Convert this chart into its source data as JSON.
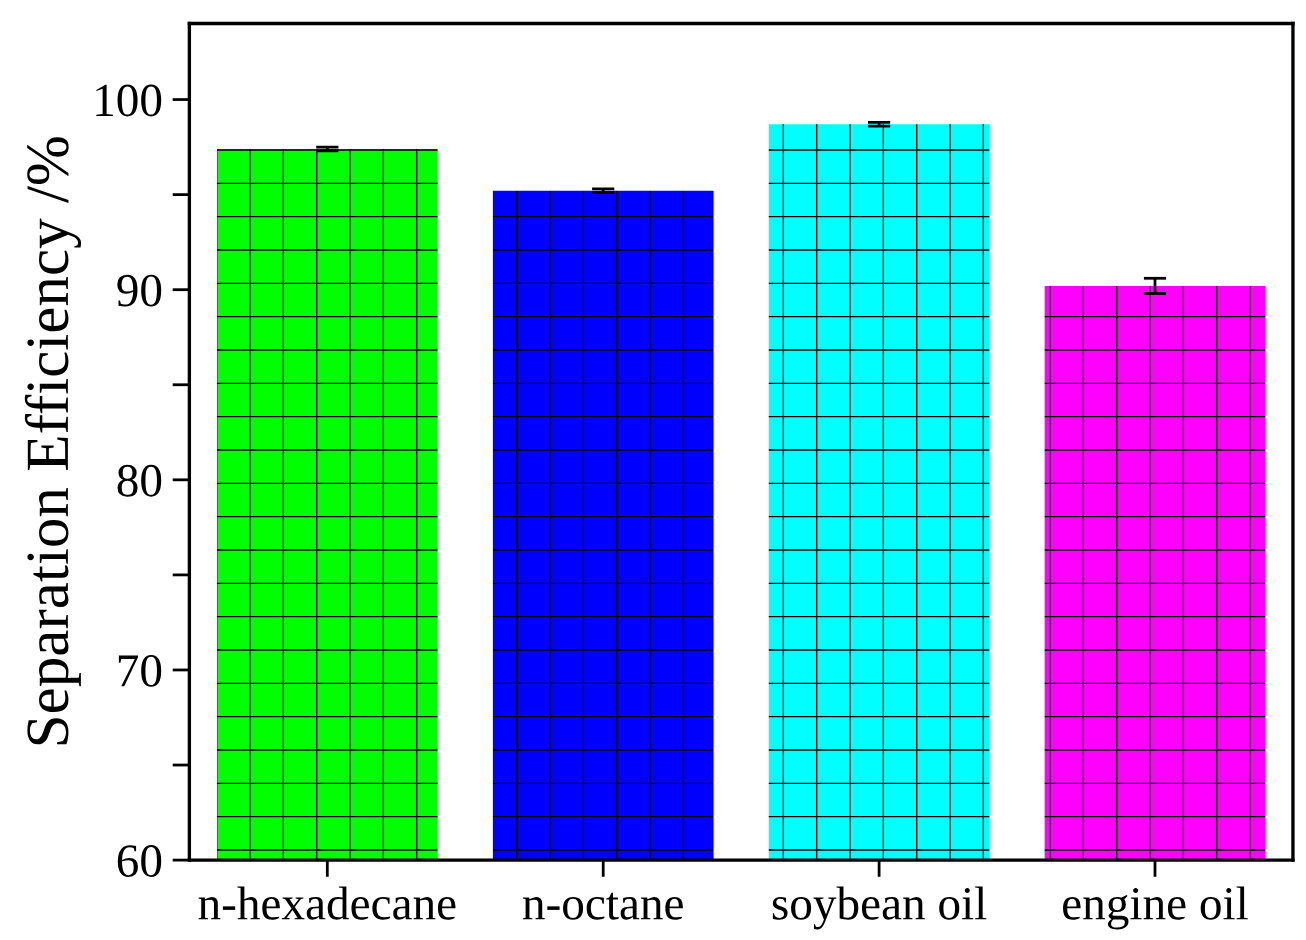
{
  "chart_data": {
    "type": "bar",
    "ylabel": "Separation Efficiency /%",
    "categories": [
      "n-hexadecane",
      "n-octane",
      "soybean oil",
      "engine oil"
    ],
    "values": [
      97.4,
      95.2,
      98.7,
      90.2
    ],
    "errors": [
      0.1,
      0.1,
      0.1,
      0.4
    ],
    "colors": [
      "#00ff00",
      "#0000ff",
      "#00ffff",
      "#ff00ff"
    ],
    "ylim": [
      60,
      104
    ],
    "yticks": [
      60,
      {
        "value": 65,
        "label": null
      },
      70,
      {
        "value": 75,
        "label": null
      },
      80,
      {
        "value": 85,
        "label": null
      },
      90,
      {
        "value": 95,
        "label": null
      },
      100
    ],
    "grid": false
  }
}
